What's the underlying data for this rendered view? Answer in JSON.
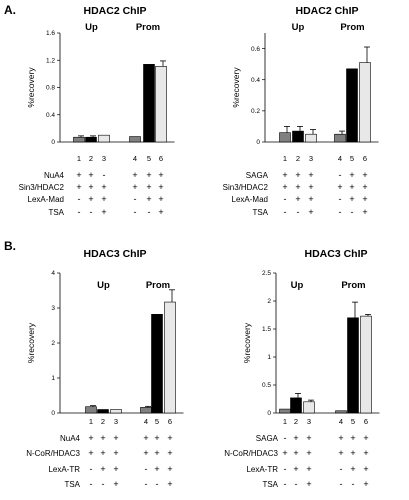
{
  "panels": [
    {
      "letter": "A."
    },
    {
      "letter": "B."
    }
  ],
  "chart_data": [
    {
      "type": "bar",
      "title": "HDAC2 ChIP",
      "ylabel": "%recovery",
      "ylim": [
        0,
        1.6
      ],
      "yticks": [
        "0",
        "0.4",
        "0.8",
        "1.2",
        "1.6"
      ],
      "groups": [
        "Up",
        "Prom"
      ],
      "lanes": [
        "1",
        "2",
        "3",
        "4",
        "5",
        "6"
      ],
      "values": [
        0.07,
        0.07,
        0.1,
        0.08,
        1.14,
        1.11
      ],
      "errors": [
        0.02,
        0.02,
        0.0,
        0.0,
        0.0,
        0.08
      ],
      "bar_colors": [
        "#808080",
        "#000000",
        "#e8e8e8",
        "#808080",
        "#000000",
        "#e8e8e8"
      ],
      "rows": [
        {
          "label": "NuA4",
          "signs": [
            "+",
            "+",
            "-",
            "+",
            "+",
            "+"
          ]
        },
        {
          "label": "Sin3/HDAC2",
          "signs": [
            "+",
            "+",
            "+",
            "+",
            "+",
            "+"
          ]
        },
        {
          "label": "LexA-Mad",
          "signs": [
            "-",
            "+",
            "+",
            "-",
            "+",
            "+"
          ]
        },
        {
          "label": "TSA",
          "signs": [
            "-",
            "-",
            "+",
            "-",
            "-",
            "+"
          ]
        }
      ]
    },
    {
      "type": "bar",
      "title": "HDAC2 ChIP",
      "ylabel": "%recovery",
      "ylim": [
        0,
        0.7
      ],
      "yticks": [
        "0",
        "0.2",
        "0.4",
        "0.6"
      ],
      "groups": [
        "Up",
        "Prom"
      ],
      "lanes": [
        "1",
        "2",
        "3",
        "4",
        "5",
        "6"
      ],
      "values": [
        0.06,
        0.07,
        0.05,
        0.05,
        0.47,
        0.51
      ],
      "errors": [
        0.04,
        0.03,
        0.03,
        0.02,
        0.0,
        0.1
      ],
      "bar_colors": [
        "#808080",
        "#000000",
        "#e8e8e8",
        "#808080",
        "#000000",
        "#e8e8e8"
      ],
      "rows": [
        {
          "label": "SAGA",
          "signs": [
            "+",
            "+",
            "+",
            "-",
            "+",
            "+"
          ]
        },
        {
          "label": "Sin3/HDAC2",
          "signs": [
            "+",
            "+",
            "+",
            "+",
            "+",
            "+"
          ]
        },
        {
          "label": "LexA-Mad",
          "signs": [
            "-",
            "+",
            "+",
            "-",
            "+",
            "+"
          ]
        },
        {
          "label": "TSA",
          "signs": [
            "-",
            "-",
            "+",
            "-",
            "-",
            "+"
          ]
        }
      ]
    },
    {
      "type": "bar",
      "title": "HDAC3 ChIP",
      "ylabel": "%recovery",
      "ylim": [
        0,
        4
      ],
      "yticks": [
        "0",
        "1",
        "2",
        "3",
        "4"
      ],
      "groups": [
        "Up",
        "Prom"
      ],
      "lanes": [
        "1",
        "2",
        "3",
        "4",
        "5",
        "6"
      ],
      "values": [
        0.18,
        0.1,
        0.1,
        0.16,
        2.82,
        3.17
      ],
      "errors": [
        0.03,
        0.0,
        0.0,
        0.03,
        0.0,
        0.35
      ],
      "bar_colors": [
        "#808080",
        "#000000",
        "#e8e8e8",
        "#808080",
        "#000000",
        "#e8e8e8"
      ],
      "rows": [
        {
          "label": "NuA4",
          "signs": [
            "+",
            "+",
            "+",
            "+",
            "+",
            "+"
          ]
        },
        {
          "label": "N-CoR/HDAC3",
          "signs": [
            "+",
            "+",
            "+",
            "+",
            "+",
            "+"
          ]
        },
        {
          "label": "LexA-TR",
          "signs": [
            "-",
            "+",
            "+",
            "-",
            "+",
            "+"
          ]
        },
        {
          "label": "TSA",
          "signs": [
            "-",
            "-",
            "+",
            "-",
            "-",
            "+"
          ]
        }
      ]
    },
    {
      "type": "bar",
      "title": "HDAC3 ChIP",
      "ylabel": "%recovery",
      "ylim": [
        0,
        2.5
      ],
      "yticks": [
        "0",
        "0.5",
        "1",
        "1.5",
        "2",
        "2.5"
      ],
      "groups": [
        "Up",
        "Prom"
      ],
      "lanes": [
        "1",
        "2",
        "3",
        "4",
        "5",
        "6"
      ],
      "values": [
        0.07,
        0.27,
        0.2,
        0.04,
        1.7,
        1.73
      ],
      "errors": [
        0.0,
        0.08,
        0.03,
        0.0,
        0.28,
        0.03
      ],
      "bar_colors": [
        "#808080",
        "#000000",
        "#e8e8e8",
        "#808080",
        "#000000",
        "#e8e8e8"
      ],
      "rows": [
        {
          "label": "SAGA",
          "signs": [
            "-",
            "+",
            "+",
            "+",
            "+",
            "+"
          ]
        },
        {
          "label": "N-CoR/HDAC3",
          "signs": [
            "+",
            "+",
            "+",
            "+",
            "+",
            "+"
          ]
        },
        {
          "label": "LexA-TR",
          "signs": [
            "-",
            "+",
            "+",
            "-",
            "+",
            "+"
          ]
        },
        {
          "label": "TSA",
          "signs": [
            "-",
            "-",
            "+",
            "-",
            "-",
            "+"
          ]
        }
      ]
    }
  ]
}
